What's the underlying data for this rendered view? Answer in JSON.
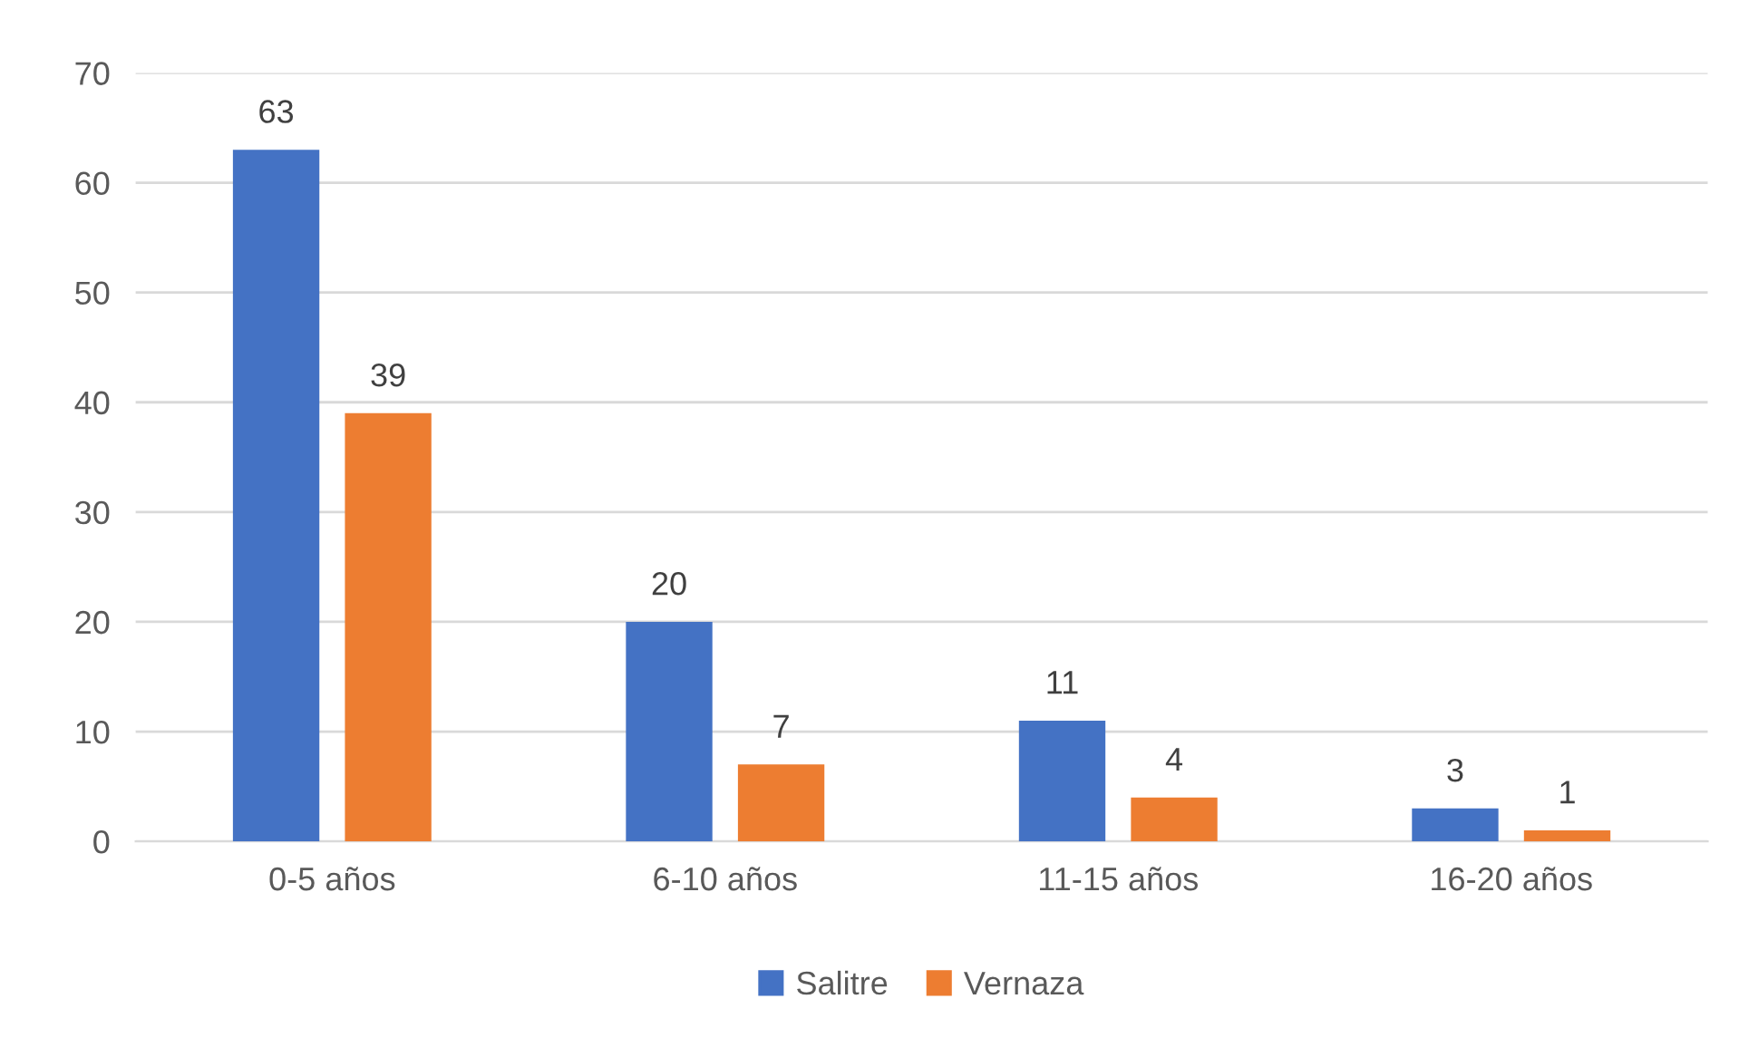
{
  "chart_data": {
    "type": "bar",
    "categories": [
      "0-5 años",
      "6-10 años",
      "11-15 años",
      "16-20 años"
    ],
    "series": [
      {
        "name": "Salitre",
        "color": "#4472c4",
        "values": [
          63,
          20,
          11,
          3
        ]
      },
      {
        "name": "Vernaza",
        "color": "#ed7d31",
        "values": [
          39,
          7,
          4,
          1
        ]
      }
    ],
    "ylim": [
      0,
      70
    ],
    "yticks": [
      0,
      10,
      20,
      30,
      40,
      50,
      60,
      70
    ],
    "grid": "y",
    "legend": "bottom",
    "data_labels": true
  }
}
